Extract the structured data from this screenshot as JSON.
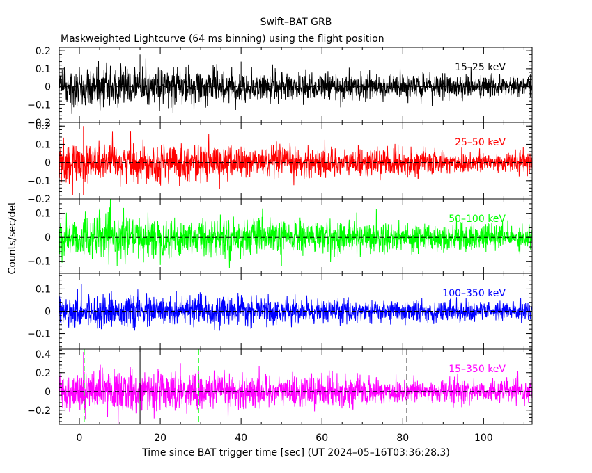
{
  "chart_data": {
    "type": "line",
    "title": "Swift–BAT GRB",
    "subtitle": "Maskweighted Lightcurve (64 ms binning) using the flight position",
    "xlabel": "Time since BAT trigger time [sec] (UT 2024–05–16T03:36:28.3)",
    "ylabel": "Counts/sec/det",
    "xlim": [
      -5,
      112
    ],
    "x_ticks": [
      {
        "value": 0,
        "label": "0"
      },
      {
        "value": 20,
        "label": "20"
      },
      {
        "value": 40,
        "label": "40"
      },
      {
        "value": 60,
        "label": "60"
      },
      {
        "value": 80,
        "label": "80"
      },
      {
        "value": 100,
        "label": "100"
      }
    ],
    "bin_width_sec": 0.064,
    "zero_line": "dashed",
    "grid": false,
    "panels": [
      {
        "name": "15–25 keV",
        "color": "#000000",
        "ylim": [
          -0.2,
          0.22
        ],
        "y_ticks": [
          {
            "value": 0.2,
            "label": "0.2"
          },
          {
            "value": 0.1,
            "label": "0.1"
          },
          {
            "value": 0,
            "label": "0"
          },
          {
            "value": -0.1,
            "label": "−0.1"
          },
          {
            "value": -0.2,
            "label": "−0.2"
          }
        ],
        "noise_sigma_start": 0.055,
        "noise_sigma_end": 0.028,
        "spikes": [
          {
            "x": 15,
            "y": 0.18
          },
          {
            "x": 22,
            "y": -0.12
          },
          {
            "x": 40,
            "y": 0.14
          }
        ],
        "vlines": []
      },
      {
        "name": "25–50 keV",
        "color": "#ff0000",
        "ylim": [
          -0.2,
          0.22
        ],
        "y_ticks": [
          {
            "value": 0.2,
            "label": "0.2"
          },
          {
            "value": 0.1,
            "label": "0.1"
          },
          {
            "value": 0,
            "label": "0"
          },
          {
            "value": -0.1,
            "label": "−0.1"
          },
          {
            "value": -0.2,
            "label": "−0.2"
          }
        ],
        "noise_sigma_start": 0.055,
        "noise_sigma_end": 0.028,
        "spikes": [
          {
            "x": 1,
            "y": -0.18
          },
          {
            "x": 1,
            "y": 0.2
          }
        ],
        "vlines": []
      },
      {
        "name": "50–100 keV",
        "color": "#00ff00",
        "ylim": [
          -0.15,
          0.16
        ],
        "y_ticks": [
          {
            "value": 0.1,
            "label": "0.1"
          },
          {
            "value": 0,
            "label": "0"
          },
          {
            "value": -0.1,
            "label": "−0.1"
          }
        ],
        "noise_sigma_start": 0.045,
        "noise_sigma_end": 0.025,
        "spikes": [
          {
            "x": 5,
            "y": 0.12
          },
          {
            "x": 50,
            "y": -0.12
          }
        ],
        "vlines": []
      },
      {
        "name": "100–350 keV",
        "color": "#0000ff",
        "ylim": [
          -0.17,
          0.17
        ],
        "y_ticks": [
          {
            "value": 0.1,
            "label": "0.1"
          },
          {
            "value": 0,
            "label": "0"
          },
          {
            "value": -0.1,
            "label": "−0.1"
          }
        ],
        "noise_sigma_start": 0.035,
        "noise_sigma_end": 0.02,
        "spikes": [
          {
            "x": 0.5,
            "y": 0.12
          },
          {
            "x": 24,
            "y": 0.09
          }
        ],
        "vlines": []
      },
      {
        "name": "15–350 keV",
        "color": "#ff00ff",
        "ylim": [
          -0.35,
          0.45
        ],
        "y_ticks": [
          {
            "value": 0.4,
            "label": "0.4"
          },
          {
            "value": 0.2,
            "label": "0.2"
          },
          {
            "value": 0,
            "label": "0"
          },
          {
            "value": -0.2,
            "label": "−0.2"
          }
        ],
        "noise_sigma_start": 0.11,
        "noise_sigma_end": 0.055,
        "spikes": [
          {
            "x": 1,
            "y": 0.42
          },
          {
            "x": 1.5,
            "y": -0.3
          },
          {
            "x": 25,
            "y": 0.3
          }
        ],
        "vlines": [
          {
            "x": 1.2,
            "color": "#00ff00",
            "style": "dashed"
          },
          {
            "x": 15,
            "color": "#000000",
            "style": "solid"
          },
          {
            "x": 29.5,
            "color": "#00ff00",
            "style": "dashed"
          },
          {
            "x": 81,
            "color": "#000000",
            "style": "dashed"
          }
        ]
      }
    ]
  }
}
